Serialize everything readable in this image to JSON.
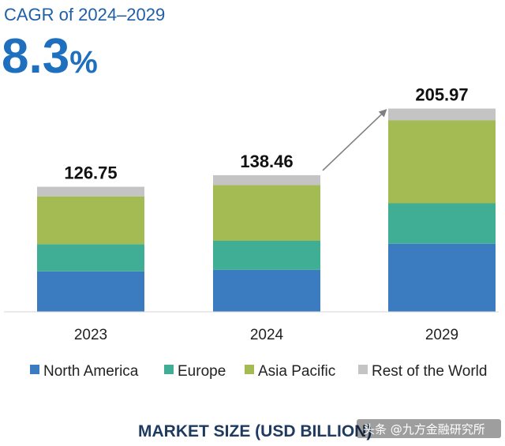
{
  "header": {
    "cagr_label": "CAGR of 2024–2029",
    "cagr_value": "8.3",
    "cagr_unit": "%"
  },
  "chart_data": {
    "type": "bar",
    "stacked": true,
    "title": "CAGR of 2024–2029",
    "xlabel": "MARKET SIZE (USD BILLION)",
    "ylabel": "",
    "ylim": [
      0,
      210
    ],
    "grid": false,
    "legend_position": "bottom",
    "categories": [
      "2023",
      "2024",
      "2029"
    ],
    "totals": [
      126.75,
      138.46,
      205.97
    ],
    "total_labels": [
      "126.75",
      "138.46",
      "205.97"
    ],
    "series": [
      {
        "name": "North America",
        "color": "#3b7bbf",
        "values": [
          41.0,
          42.5,
          69.0
        ]
      },
      {
        "name": "Europe",
        "color": "#3fae95",
        "values": [
          27.5,
          29.5,
          41.0
        ]
      },
      {
        "name": "Asia Pacific",
        "color": "#a3bb52",
        "values": [
          48.5,
          56.5,
          84.0
        ]
      },
      {
        "name": "Rest of the World",
        "color": "#c4c4c4",
        "values": [
          9.75,
          9.96,
          11.97
        ]
      }
    ],
    "annotation": {
      "type": "arrow",
      "from": "2024",
      "to": "2029"
    }
  },
  "watermark": {
    "text": "头条 @九方金融研究所"
  }
}
